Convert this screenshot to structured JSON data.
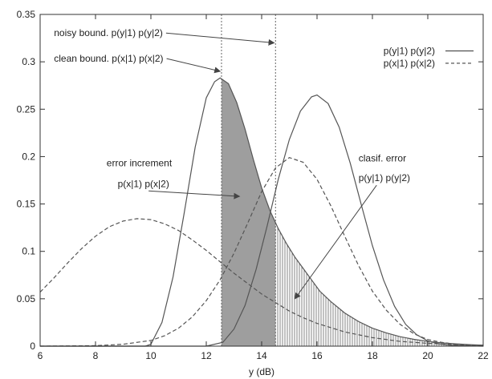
{
  "chart_data": {
    "type": "line",
    "title": "",
    "xlabel": "y (dB)",
    "ylabel": "",
    "xlim": [
      6,
      22
    ],
    "ylim": [
      0,
      0.35
    ],
    "x_ticks": [
      6,
      8,
      10,
      12,
      14,
      16,
      18,
      20,
      22
    ],
    "y_ticks": [
      0,
      0.05,
      0.1,
      0.15,
      0.2,
      0.25,
      0.3,
      0.35
    ],
    "grid": false,
    "legend_position": "top-right",
    "legend": [
      {
        "label": "p(y|1)  p(y|2)",
        "style": "solid"
      },
      {
        "label": "p(x|1)  p(x|2)",
        "style": "dashed"
      }
    ],
    "series": [
      {
        "style": "solid",
        "x": [
          6,
          9.8,
          10,
          10.4,
          10.8,
          11.2,
          11.6,
          12,
          12.3,
          12.5,
          12.8,
          13.1,
          13.4,
          13.7,
          14,
          14.3,
          14.6,
          14.9,
          15.2,
          15.5,
          15.8,
          16.1,
          16.5,
          17,
          17.5,
          18,
          18.5,
          19,
          19.5,
          20,
          20.5,
          21,
          21.5,
          22
        ],
        "y": [
          0,
          0,
          0.002,
          0.025,
          0.073,
          0.14,
          0.21,
          0.262,
          0.279,
          0.283,
          0.277,
          0.257,
          0.229,
          0.197,
          0.167,
          0.143,
          0.124,
          0.108,
          0.094,
          0.082,
          0.07,
          0.058,
          0.047,
          0.035,
          0.026,
          0.019,
          0.014,
          0.01,
          0.0072,
          0.005,
          0.0035,
          0.0024,
          0.0016,
          0.001
        ]
      },
      {
        "style": "solid",
        "x": [
          6,
          12,
          12.6,
          13,
          13.4,
          13.8,
          14.2,
          14.6,
          15,
          15.4,
          15.8,
          16,
          16.4,
          16.8,
          17.2,
          17.6,
          18,
          18.4,
          18.8,
          19.2,
          19.6,
          20,
          20.4,
          20.8,
          21.2,
          21.6,
          22
        ],
        "y": [
          0,
          0,
          0.004,
          0.018,
          0.043,
          0.081,
          0.127,
          0.176,
          0.218,
          0.248,
          0.263,
          0.265,
          0.256,
          0.231,
          0.193,
          0.149,
          0.106,
          0.07,
          0.042,
          0.023,
          0.012,
          0.0055,
          0.0024,
          0.001,
          0.0004,
          0.0002,
          0
        ]
      },
      {
        "style": "dashed",
        "x": [
          6,
          6.5,
          7,
          7.5,
          8,
          8.5,
          9,
          9.5,
          10,
          10.5,
          11,
          11.5,
          12,
          12.5,
          13,
          13.5,
          14,
          14.5,
          15,
          15.5,
          16,
          17,
          18,
          19,
          20,
          21,
          22
        ],
        "y": [
          0.057,
          0.072,
          0.088,
          0.103,
          0.116,
          0.126,
          0.132,
          0.1345,
          0.1335,
          0.129,
          0.122,
          0.112,
          0.101,
          0.089,
          0.077,
          0.066,
          0.055,
          0.046,
          0.037,
          0.03,
          0.024,
          0.015,
          0.009,
          0.005,
          0.003,
          0.0015,
          0.001
        ]
      },
      {
        "style": "dashed",
        "x": [
          6,
          8,
          9,
          10,
          10.5,
          11,
          11.5,
          12,
          12.5,
          13,
          13.5,
          14,
          14.5,
          15,
          15.5,
          16,
          16.5,
          17,
          17.5,
          18,
          18.5,
          19,
          19.5,
          20,
          20.5,
          21,
          21.5,
          22
        ],
        "y": [
          0,
          0.0005,
          0.002,
          0.006,
          0.011,
          0.019,
          0.031,
          0.048,
          0.07,
          0.098,
          0.13,
          0.163,
          0.188,
          0.199,
          0.194,
          0.176,
          0.148,
          0.116,
          0.085,
          0.058,
          0.038,
          0.023,
          0.013,
          0.007,
          0.004,
          0.002,
          0.001,
          0.0005
        ]
      }
    ],
    "vertical_lines": [
      {
        "x": 12.55,
        "style": "dotted"
      },
      {
        "x": 14.5,
        "style": "dotted"
      }
    ],
    "annotations": [
      {
        "text": "noisy bound. p(y|1) p(y|2)",
        "x": 6.5,
        "y": 0.327,
        "arrow_to": [
          14.45,
          0.32
        ]
      },
      {
        "text": "clean bound. p(x|1) p(x|2)",
        "x": 6.5,
        "y": 0.3,
        "arrow_to": [
          12.5,
          0.29
        ]
      },
      {
        "text": "error increment",
        "x": 8.4,
        "y": 0.19
      },
      {
        "text": "p(x|1) p(x|2)",
        "x": 8.8,
        "y": 0.168,
        "arrow_to": [
          13.2,
          0.158
        ]
      },
      {
        "text": "clasif. error",
        "x": 17.5,
        "y": 0.195
      },
      {
        "text": "p(y|1) p(y|2)",
        "x": 17.5,
        "y": 0.174,
        "arrow_to": [
          15.2,
          0.05
        ]
      }
    ],
    "shaded_regions": [
      {
        "x_from": 12.55,
        "x_to": 14.5,
        "fill": "solid-gray",
        "under": "both-curves"
      },
      {
        "x_from": 14.5,
        "x_to": 22,
        "fill": "vertical-hatch",
        "under": "both-curves"
      }
    ]
  }
}
